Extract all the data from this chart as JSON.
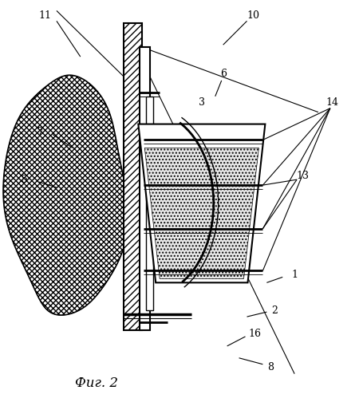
{
  "title": "Фиг. 2",
  "background": "#ffffff",
  "lc": "#000000",
  "fig_w": 4.56,
  "fig_h": 4.99,
  "dpi": 100
}
